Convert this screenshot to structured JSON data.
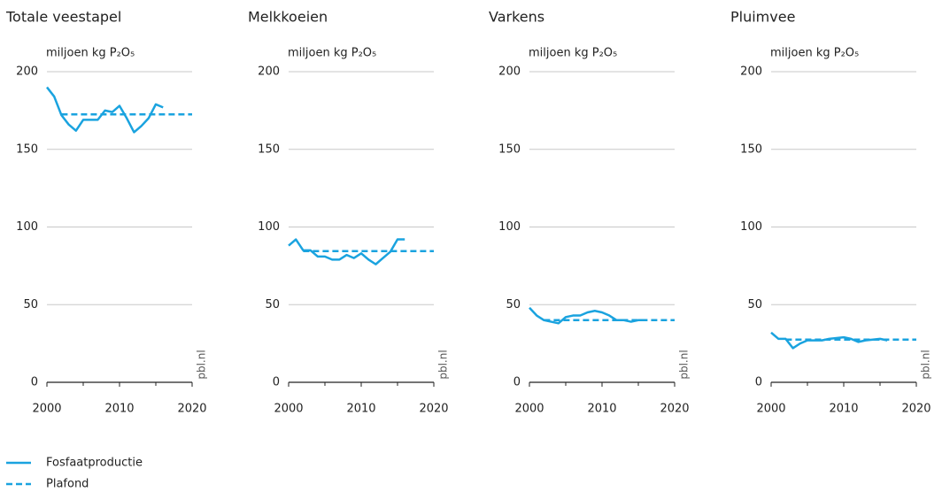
{
  "chart_data": [
    {
      "type": "line",
      "title": "Totale veestapel",
      "ylabel": "miljoen kg P₂O₅",
      "watermark": "pbl.nl",
      "xlim": [
        2000,
        2020
      ],
      "xticks": [
        2000,
        2010,
        2020
      ],
      "xminorticks": [
        2005,
        2015
      ],
      "ylim": [
        0,
        200
      ],
      "yticks": [
        0,
        50,
        100,
        150,
        200
      ],
      "grid": true,
      "series": [
        {
          "name": "Fosfaatproductie",
          "color": "#1aa3df",
          "style": "solid",
          "x": [
            2000,
            2001,
            2002,
            2003,
            2004,
            2005,
            2006,
            2007,
            2008,
            2009,
            2010,
            2011,
            2012,
            2013,
            2014,
            2015,
            2016
          ],
          "values": [
            190,
            184,
            172,
            166,
            162,
            169,
            169,
            169,
            175,
            174,
            178,
            170,
            161,
            165,
            170,
            179,
            177
          ]
        },
        {
          "name": "Plafond",
          "color": "#1aa3df",
          "style": "dashed",
          "x": [
            2002,
            2020
          ],
          "values": [
            172.5,
            172.5
          ]
        }
      ]
    },
    {
      "type": "line",
      "title": "Melkkoeien",
      "ylabel": "miljoen kg P₂O₅",
      "watermark": "pbl.nl",
      "xlim": [
        2000,
        2020
      ],
      "xticks": [
        2000,
        2010,
        2020
      ],
      "xminorticks": [
        2005,
        2015
      ],
      "ylim": [
        0,
        200
      ],
      "yticks": [
        0,
        50,
        100,
        150,
        200
      ],
      "grid": true,
      "series": [
        {
          "name": "Fosfaatproductie",
          "color": "#1aa3df",
          "style": "solid",
          "x": [
            2000,
            2001,
            2002,
            2003,
            2004,
            2005,
            2006,
            2007,
            2008,
            2009,
            2010,
            2011,
            2012,
            2013,
            2014,
            2015,
            2016
          ],
          "values": [
            88,
            92,
            85,
            85,
            81,
            81,
            79,
            79,
            82,
            80,
            83,
            79,
            76,
            80,
            84,
            92,
            92
          ]
        },
        {
          "name": "Plafond",
          "color": "#1aa3df",
          "style": "dashed",
          "x": [
            2002,
            2020
          ],
          "values": [
            84.5,
            84.5
          ]
        }
      ]
    },
    {
      "type": "line",
      "title": "Varkens",
      "ylabel": "miljoen kg P₂O₅",
      "watermark": "pbl.nl",
      "xlim": [
        2000,
        2020
      ],
      "xticks": [
        2000,
        2010,
        2020
      ],
      "xminorticks": [
        2005,
        2015
      ],
      "ylim": [
        0,
        200
      ],
      "yticks": [
        0,
        50,
        100,
        150,
        200
      ],
      "grid": true,
      "series": [
        {
          "name": "Fosfaatproductie",
          "color": "#1aa3df",
          "style": "solid",
          "x": [
            2000,
            2001,
            2002,
            2003,
            2004,
            2005,
            2006,
            2007,
            2008,
            2009,
            2010,
            2011,
            2012,
            2013,
            2014,
            2015,
            2016
          ],
          "values": [
            48,
            43,
            40,
            39,
            38,
            42,
            43,
            43,
            45,
            46,
            45,
            43,
            40,
            40,
            39,
            40,
            40
          ]
        },
        {
          "name": "Plafond",
          "color": "#1aa3df",
          "style": "dashed",
          "x": [
            2002,
            2020
          ],
          "values": [
            40,
            40
          ]
        }
      ]
    },
    {
      "type": "line",
      "title": "Pluimvee",
      "ylabel": "miljoen kg P₂O₅",
      "watermark": "pbl.nl",
      "xlim": [
        2000,
        2020
      ],
      "xticks": [
        2000,
        2010,
        2020
      ],
      "xminorticks": [
        2005,
        2015
      ],
      "ylim": [
        0,
        200
      ],
      "yticks": [
        0,
        50,
        100,
        150,
        200
      ],
      "grid": true,
      "series": [
        {
          "name": "Fosfaatproductie",
          "color": "#1aa3df",
          "style": "solid",
          "x": [
            2000,
            2001,
            2002,
            2003,
            2004,
            2005,
            2006,
            2007,
            2008,
            2009,
            2010,
            2011,
            2012,
            2013,
            2014,
            2015,
            2016
          ],
          "values": [
            32,
            28,
            28,
            22,
            25,
            27,
            27,
            27,
            28,
            28.5,
            29,
            28,
            26,
            27,
            27.5,
            28,
            27
          ]
        },
        {
          "name": "Plafond",
          "color": "#1aa3df",
          "style": "dashed",
          "x": [
            2002,
            2020
          ],
          "values": [
            27.5,
            27.5
          ]
        }
      ]
    }
  ]
}
